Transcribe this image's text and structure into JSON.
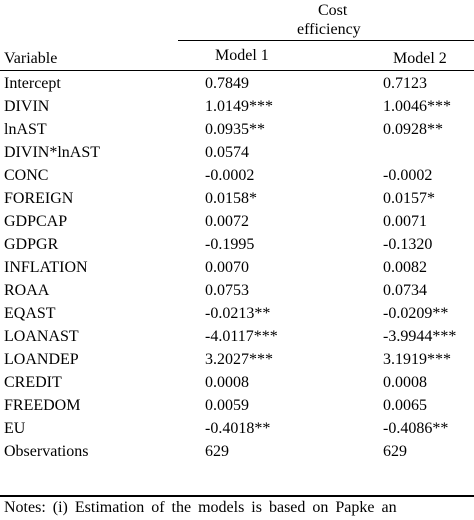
{
  "header": {
    "group_label": "Cost efficiency",
    "variable_label": "Variable",
    "model1_label": "Model 1",
    "model2_label": "Model 2"
  },
  "rows": [
    {
      "variable": "Intercept",
      "model1": "0.7849",
      "model2": "0.7123"
    },
    {
      "variable": "DIVIN",
      "model1": "1.0149***",
      "model2": "1.0046***"
    },
    {
      "variable": "lnAST",
      "model1": "0.0935**",
      "model2": "0.0928**"
    },
    {
      "variable": "DIVIN*lnAST",
      "model1": "0.0574",
      "model2": ""
    },
    {
      "variable": "CONC",
      "model1": "-0.0002",
      "model2": "-0.0002"
    },
    {
      "variable": "FOREIGN",
      "model1": "0.0158*",
      "model2": "0.0157*"
    },
    {
      "variable": "GDPCAP",
      "model1": "0.0072",
      "model2": "0.0071"
    },
    {
      "variable": "GDPGR",
      "model1": "-0.1995",
      "model2": "-0.1320"
    },
    {
      "variable": "INFLATION",
      "model1": "0.0070",
      "model2": "0.0082"
    },
    {
      "variable": "ROAA",
      "model1": "0.0753",
      "model2": "0.0734"
    },
    {
      "variable": "EQAST",
      "model1": "-0.0213**",
      "model2": "-0.0209**"
    },
    {
      "variable": "LOANAST",
      "model1": "-4.0117***",
      "model2": "-3.9944***"
    },
    {
      "variable": "LOANDEP",
      "model1": "3.2027***",
      "model2": "3.1919***"
    },
    {
      "variable": "CREDIT",
      "model1": "0.0008",
      "model2": "0.0008"
    },
    {
      "variable": "FREEDOM",
      "model1": "0.0059",
      "model2": "0.0065"
    },
    {
      "variable": "EU",
      "model1": "-0.4018**",
      "model2": "-0.4086**"
    },
    {
      "variable": "Observations",
      "model1": "629",
      "model2": "629"
    }
  ],
  "note": "Notes: (i) Estimation of the models is based on Papke an"
}
